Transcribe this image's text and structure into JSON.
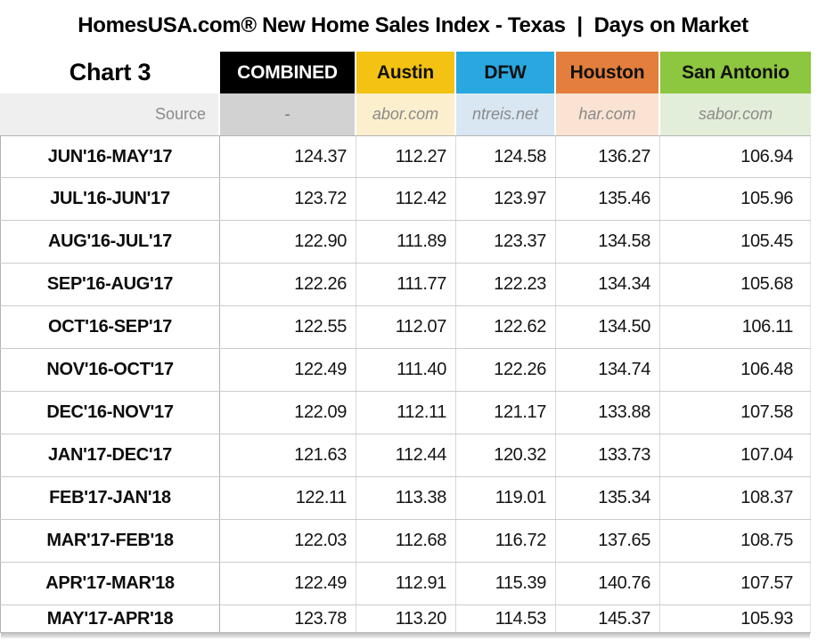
{
  "title": "HomesUSA.com® New Home Sales Index - Texas  |  Days on Market",
  "corner_label": "Chart 3",
  "source_row_label": "Source",
  "colors": {
    "combined_header": "#000000",
    "combined_header_text": "#FFFFFF",
    "austin_header": "#F3C212",
    "dfw_header": "#29A8E0",
    "houston_header": "#E37E3D",
    "san_antonio_header": "#8DC63F",
    "combined_source_tint": "#D2D2D2",
    "austin_source_tint": "#FBEFCE",
    "dfw_source_tint": "#D9E7F2",
    "houston_source_tint": "#FAE3D3",
    "san_antonio_source_tint": "#E3EEDA"
  },
  "chart_data": {
    "type": "table",
    "title": "HomesUSA.com® New Home Sales Index - Texas  |  Days on Market",
    "corner_label": "Chart 3",
    "source_row_label": "Source",
    "categories": [
      "JUN'16-MAY'17",
      "JUL'16-JUN'17",
      "AUG'16-JUL'17",
      "SEP'16-AUG'17",
      "OCT'16-SEP'17",
      "NOV'16-OCT'17",
      "DEC'16-NOV'17",
      "JAN'17-DEC'17",
      "FEB'17-JAN'18",
      "MAR'17-FEB'18",
      "APR'17-MAR'18",
      "MAY'17-APR'18"
    ],
    "series": [
      {
        "name": "COMBINED",
        "source": "-",
        "values": [
          "124.37",
          "123.72",
          "122.90",
          "122.26",
          "122.55",
          "122.49",
          "122.09",
          "121.63",
          "122.11",
          "122.03",
          "122.49",
          "123.78"
        ]
      },
      {
        "name": "Austin",
        "source": "abor.com",
        "values": [
          "112.27",
          "112.42",
          "111.89",
          "111.77",
          "112.07",
          "111.40",
          "112.11",
          "112.44",
          "113.38",
          "112.68",
          "112.91",
          "113.20"
        ]
      },
      {
        "name": "DFW",
        "source": "ntreis.net",
        "values": [
          "124.58",
          "123.97",
          "123.37",
          "122.23",
          "122.62",
          "122.26",
          "121.17",
          "120.32",
          "119.01",
          "116.72",
          "115.39",
          "114.53"
        ]
      },
      {
        "name": "Houston",
        "source": "har.com",
        "values": [
          "136.27",
          "135.46",
          "134.58",
          "134.34",
          "134.50",
          "134.74",
          "133.88",
          "133.73",
          "135.34",
          "137.65",
          "140.76",
          "145.37"
        ]
      },
      {
        "name": "San Antonio",
        "source": "sabor.com",
        "values": [
          "106.94",
          "105.96",
          "105.45",
          "105.68",
          "106.11",
          "106.48",
          "107.58",
          "107.04",
          "108.37",
          "108.75",
          "107.57",
          "105.93"
        ]
      }
    ]
  }
}
